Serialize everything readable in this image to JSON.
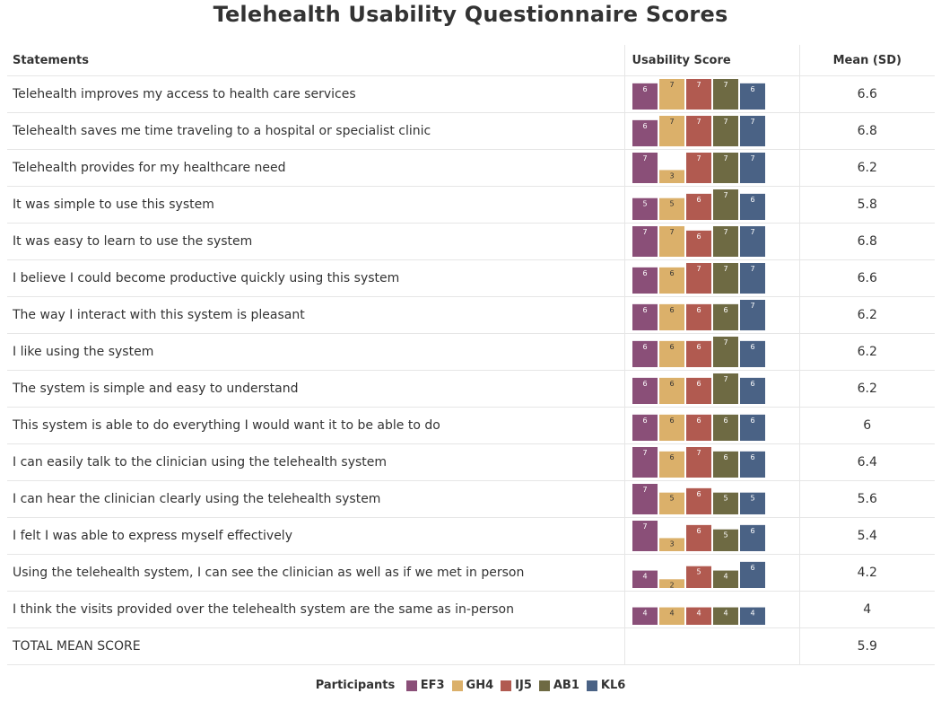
{
  "title": "Telehealth Usability Questionnaire Scores",
  "headers": {
    "statements": "Statements",
    "score": "Usability Score",
    "mean": "Mean (SD)"
  },
  "legend": {
    "label": "Participants"
  },
  "colors": {
    "EF3": "#8a4f78",
    "GH4": "#dbb06a",
    "IJ5": "#b15a50",
    "AB1": "#6e6a43",
    "KL6": "#4a6285"
  },
  "total": {
    "label": "TOTAL MEAN SCORE",
    "mean": "5.9"
  },
  "chart_data": {
    "type": "bar",
    "title": "Telehealth Usability Questionnaire Scores",
    "ylim": [
      0,
      7
    ],
    "series": [
      {
        "name": "EF3",
        "values": [
          6,
          6,
          7,
          5,
          7,
          6,
          6,
          6,
          6,
          6,
          7,
          7,
          7,
          4,
          4
        ]
      },
      {
        "name": "GH4",
        "values": [
          7,
          7,
          3,
          5,
          7,
          6,
          6,
          6,
          6,
          6,
          6,
          5,
          3,
          2,
          4
        ]
      },
      {
        "name": "IJ5",
        "values": [
          7,
          7,
          7,
          6,
          6,
          7,
          6,
          6,
          6,
          6,
          7,
          6,
          6,
          5,
          4
        ]
      },
      {
        "name": "AB1",
        "values": [
          7,
          7,
          7,
          7,
          7,
          7,
          6,
          7,
          7,
          6,
          6,
          5,
          5,
          4,
          4
        ]
      },
      {
        "name": "KL6",
        "values": [
          6,
          7,
          7,
          6,
          7,
          7,
          7,
          6,
          6,
          6,
          6,
          5,
          6,
          6,
          4
        ]
      }
    ],
    "rows": [
      {
        "statement": "Telehealth improves my access to health care services",
        "mean": "6.6"
      },
      {
        "statement": "Telehealth saves me time traveling to a hospital or specialist clinic",
        "mean": "6.8"
      },
      {
        "statement": "Telehealth provides for my healthcare need",
        "mean": "6.2"
      },
      {
        "statement": "It was simple to use this system",
        "mean": "5.8"
      },
      {
        "statement": "It was easy to learn to use the system",
        "mean": "6.8"
      },
      {
        "statement": "I believe I could become productive quickly using this system",
        "mean": "6.6"
      },
      {
        "statement": "The way I interact with this system is pleasant",
        "mean": "6.2"
      },
      {
        "statement": "I like using the system",
        "mean": "6.2"
      },
      {
        "statement": "The system is simple and easy to understand",
        "mean": "6.2"
      },
      {
        "statement": "This system is able to do everything I would want it to be able to do",
        "mean": "6"
      },
      {
        "statement": "I can easily talk to the clinician using the telehealth system",
        "mean": "6.4"
      },
      {
        "statement": "I can hear the clinician clearly using the telehealth system",
        "mean": "5.6"
      },
      {
        "statement": "I felt I was able to express myself effectively",
        "mean": "5.4"
      },
      {
        "statement": "Using the telehealth system, I can see the clinician as well as if we met in person",
        "mean": "4.2"
      },
      {
        "statement": "I think the visits provided over the telehealth system are the same as in-person",
        "mean": "4"
      }
    ]
  }
}
